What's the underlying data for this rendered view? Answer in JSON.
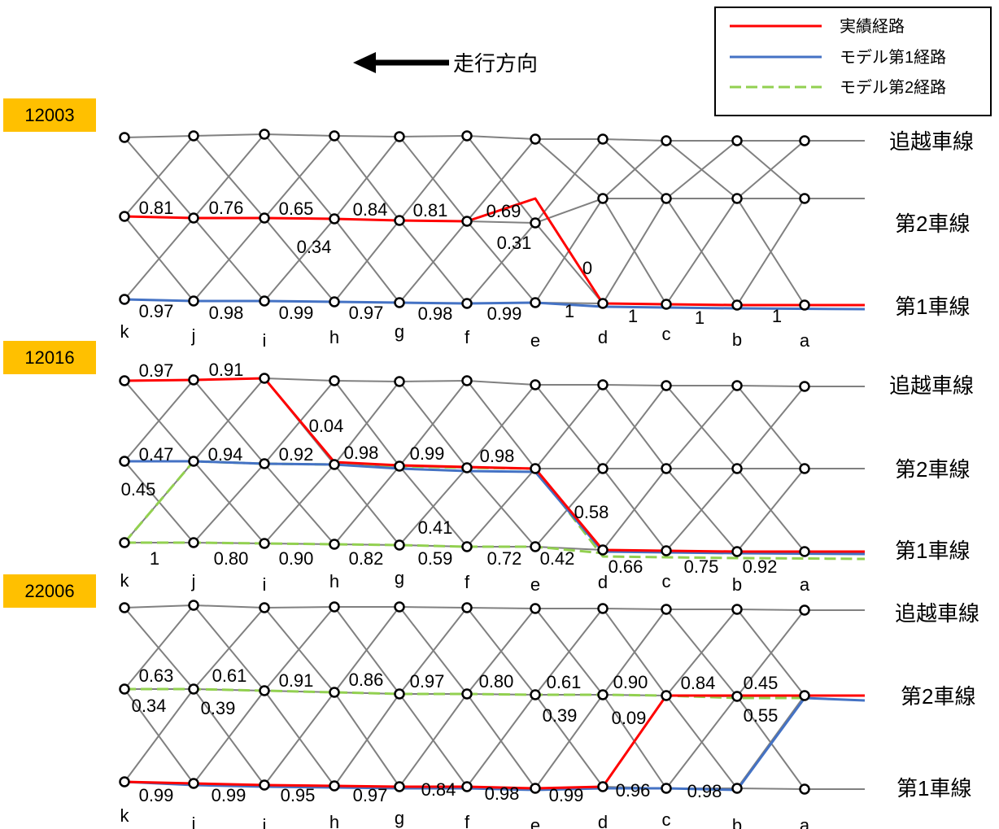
{
  "legend": {
    "items": [
      {
        "label": "実績経路",
        "color": "#ff0000",
        "style": "solid"
      },
      {
        "label": "モデル第1経路",
        "color": "#4472c4",
        "style": "solid"
      },
      {
        "label": "モデル第2経路",
        "color": "#92d050",
        "style": "dashed"
      }
    ]
  },
  "direction": {
    "label": "走行方向",
    "icon": "arrow-left-icon"
  },
  "colors": {
    "grid": "#808080",
    "vehicle_badge": "#ffc000",
    "actual": "#ff0000",
    "model1": "#4472c4",
    "model2": "#92d050"
  },
  "node_letters": [
    "k",
    "j",
    "i",
    "h",
    "g",
    "f",
    "e",
    "d",
    "c",
    "b",
    "a"
  ],
  "diagrams": [
    {
      "vehicle_id": "12003",
      "lanes": {
        "passing": "追越車線",
        "second": "第2車線",
        "first": "第1車線"
      },
      "labels": [
        "0.81",
        "0.76",
        "0.65",
        "0.84",
        "0.81",
        "0.69",
        "0.34",
        "0.31",
        "0",
        "0.97",
        "0.98",
        "0.99",
        "0.97",
        "0.98",
        "0.99",
        "1",
        "1",
        "1",
        "1"
      ]
    },
    {
      "vehicle_id": "12016",
      "lanes": {
        "passing": "追越車線",
        "second": "第2車線",
        "first": "第1車線"
      },
      "labels": [
        "0.97",
        "0.91",
        "0.04",
        "0.47",
        "0.94",
        "0.92",
        "0.98",
        "0.99",
        "0.98",
        "0.45",
        "0.58",
        "0.41",
        "1",
        "0.80",
        "0.90",
        "0.82",
        "0.59",
        "0.72",
        "0.42",
        "0.66",
        "0.75",
        "0.92"
      ]
    },
    {
      "vehicle_id": "22006",
      "lanes": {
        "passing": "追越車線",
        "second": "第2車線",
        "first": "第1車線"
      },
      "labels": [
        "0.63",
        "0.61",
        "0.91",
        "0.86",
        "0.97",
        "0.80",
        "0.61",
        "0.90",
        "0.84",
        "0.45",
        "0.34",
        "0.39",
        "0.39",
        "0.09",
        "0.55",
        "0.99",
        "0.99",
        "0.95",
        "0.97",
        "0.84",
        "0.98",
        "0.99",
        "0.96",
        "0.98"
      ]
    }
  ]
}
